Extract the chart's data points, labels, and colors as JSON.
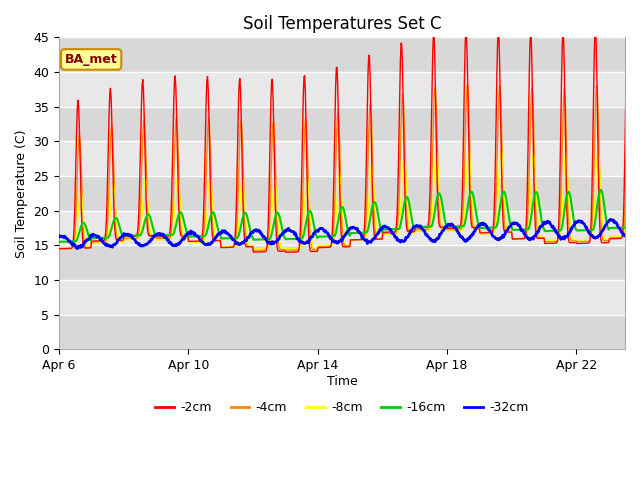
{
  "title": "Soil Temperatures Set C",
  "xlabel": "Time",
  "ylabel": "Soil Temperature (C)",
  "ylim": [
    0,
    45
  ],
  "yticks": [
    0,
    5,
    10,
    15,
    20,
    25,
    30,
    35,
    40,
    45
  ],
  "x_start_day": 6,
  "n_days": 18,
  "legend_labels": [
    "-2cm",
    "-4cm",
    "-8cm",
    "-16cm",
    "-32cm"
  ],
  "legend_colors": [
    "#ff0000",
    "#ff8800",
    "#ffff00",
    "#00cc00",
    "#0000ff"
  ],
  "background_color": "#ffffff",
  "plot_bg_color": "#e8e8e8",
  "annotation_text": "BA_met",
  "annotation_bg": "#ffff99",
  "annotation_border": "#cc8800",
  "grid_color": "#ffffff",
  "xtick_labels": [
    "Apr 6",
    "Apr 10",
    "Apr 14",
    "Apr 18",
    "Apr 22"
  ],
  "xtick_positions": [
    6,
    10,
    14,
    18,
    22
  ]
}
